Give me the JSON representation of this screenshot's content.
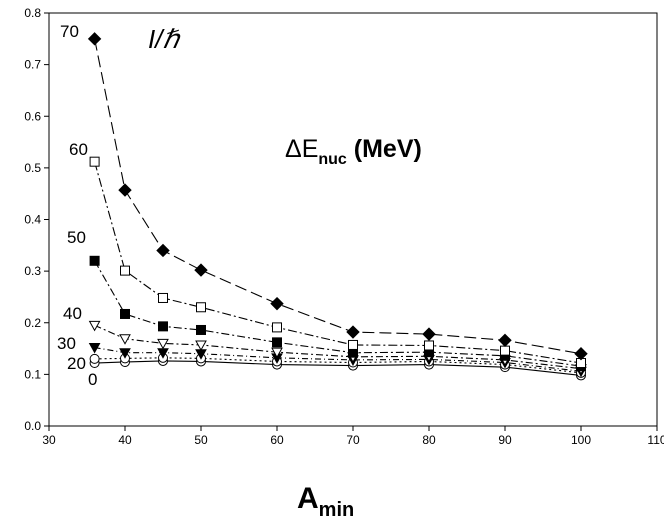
{
  "chart_data": {
    "type": "line",
    "title": "",
    "xlabel": "A",
    "xlabel_sub": "min",
    "ylabel": "",
    "xlim": [
      30,
      110
    ],
    "ylim": [
      0,
      0.8
    ],
    "xticks": [
      "30",
      "40",
      "50",
      "60",
      "70",
      "80",
      "90",
      "100",
      "110"
    ],
    "yticks": [
      "0.0",
      "0.1",
      "0.2",
      "0.3",
      "0.4",
      "0.5",
      "0.6",
      "0.7",
      "0.8"
    ],
    "x": [
      36,
      40,
      45,
      50,
      60,
      70,
      80,
      90,
      100
    ],
    "legend_title": "I/ℏ",
    "annotation": {
      "prefix": "ΔE",
      "sub": "nuc",
      "suffix": " (MeV)"
    },
    "grid": false,
    "series": [
      {
        "name": "0",
        "marker": "circle-open",
        "dash": "none",
        "values": [
          0.122,
          0.124,
          0.126,
          0.125,
          0.119,
          0.117,
          0.119,
          0.114,
          0.098
        ]
      },
      {
        "name": "20",
        "marker": "circle-open",
        "dash": "2,3",
        "values": [
          0.13,
          0.131,
          0.132,
          0.131,
          0.125,
          0.123,
          0.125,
          0.119,
          0.103
        ]
      },
      {
        "name": "30",
        "marker": "triangle-down-filled",
        "dash": "6,3,1,3",
        "values": [
          0.152,
          0.142,
          0.142,
          0.14,
          0.132,
          0.128,
          0.129,
          0.123,
          0.106
        ]
      },
      {
        "name": "40",
        "marker": "triangle-down-open",
        "dash": "7,3,2,3",
        "values": [
          0.195,
          0.169,
          0.16,
          0.157,
          0.143,
          0.134,
          0.135,
          0.128,
          0.111
        ]
      },
      {
        "name": "50",
        "marker": "square-filled",
        "dash": "8,3,2,3",
        "values": [
          0.32,
          0.217,
          0.193,
          0.186,
          0.162,
          0.142,
          0.143,
          0.136,
          0.116
        ]
      },
      {
        "name": "60",
        "marker": "square-open",
        "dash": "9,3,2,3",
        "values": [
          0.512,
          0.301,
          0.248,
          0.23,
          0.191,
          0.157,
          0.156,
          0.146,
          0.122
        ]
      },
      {
        "name": "70",
        "marker": "diamond-filled",
        "dash": "12,5",
        "values": [
          0.75,
          0.457,
          0.34,
          0.302,
          0.237,
          0.182,
          0.178,
          0.166,
          0.14
        ]
      }
    ]
  }
}
